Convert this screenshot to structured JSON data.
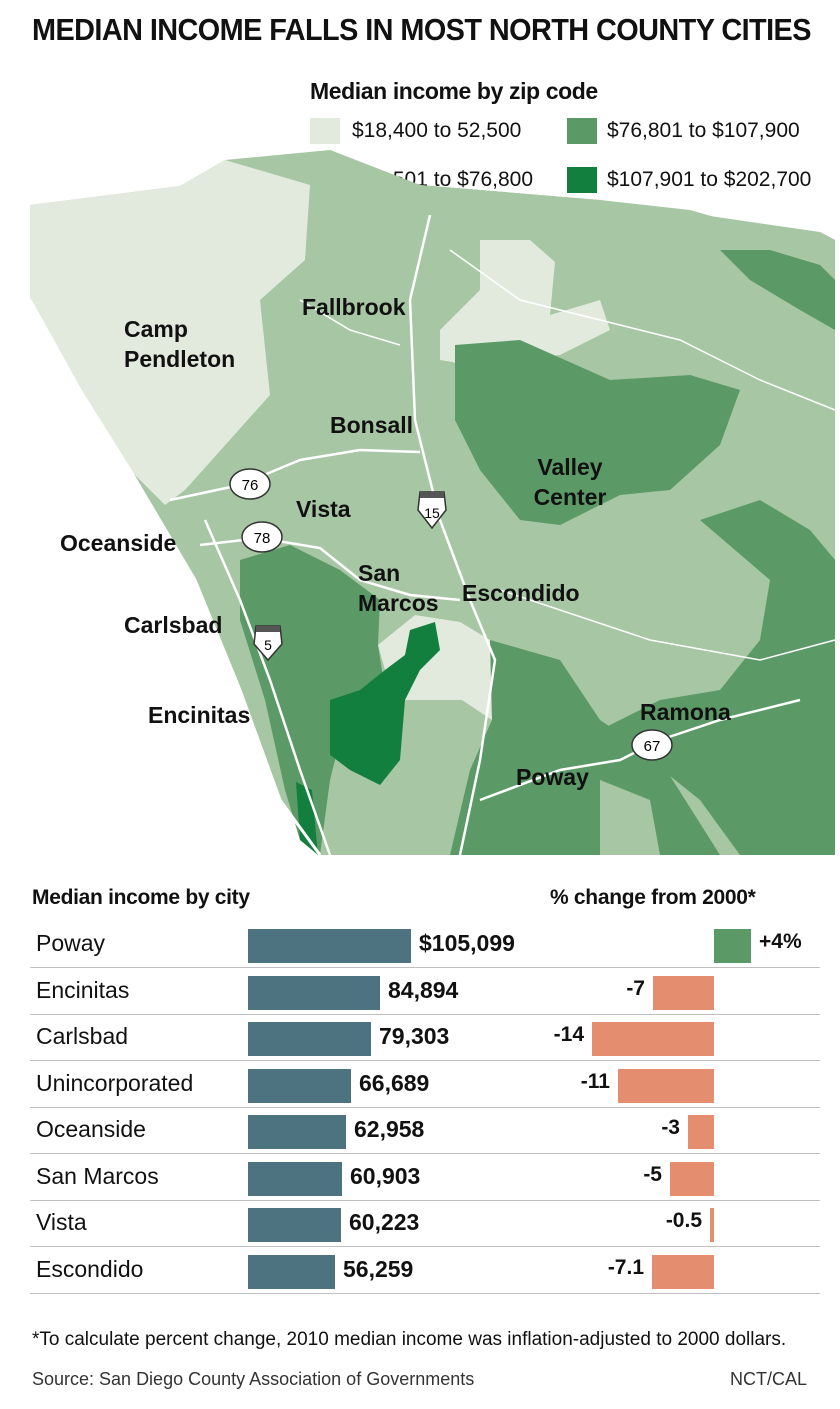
{
  "title": "MEDIAN INCOME FALLS IN MOST NORTH COUNTY CITIES",
  "legend": {
    "title": "Median income by zip code",
    "items": [
      {
        "label": "$18,400 to 52,500",
        "color": "#e1eadd"
      },
      {
        "label": "$76,801 to $107,900",
        "color": "#5b9a66"
      },
      {
        "label": "$52,501 to $76,800",
        "color": "#a7c6a4"
      },
      {
        "label": "$107,901 to $202,700",
        "color": "#137f3e"
      }
    ]
  },
  "map": {
    "places": [
      "Camp Pendleton",
      "Fallbrook",
      "Bonsall",
      "Valley Center",
      "Vista",
      "Oceanside",
      "San Marcos",
      "Escondido",
      "Carlsbad",
      "Encinitas",
      "Ramona",
      "Poway"
    ],
    "highways": [
      "76",
      "78",
      "15",
      "5",
      "67"
    ]
  },
  "chart_data": {
    "type": "bar",
    "titles": [
      "Median income by city",
      "% change from 2000*"
    ],
    "categories": [
      "Poway",
      "Encinitas",
      "Carlsbad",
      "Unincorporated",
      "Oceanside",
      "San Marcos",
      "Vista",
      "Escondido"
    ],
    "series": [
      {
        "name": "Median income by city",
        "values": [
          105099,
          84894,
          79303,
          66689,
          62958,
          60903,
          60223,
          56259
        ],
        "labels": [
          "$105,099",
          "84,894",
          "79,303",
          "66,689",
          "62,958",
          "60,903",
          "60,223",
          "56,259"
        ]
      },
      {
        "name": "% change from 2000*",
        "values": [
          4,
          -7,
          -14,
          -11,
          -3,
          -5,
          -0.5,
          -7.1
        ],
        "labels": [
          "+4%",
          "-7",
          "-14",
          "-11",
          "-3",
          "-5",
          "-0.5",
          "-7.1"
        ]
      }
    ],
    "colors": {
      "income": "#4d7381",
      "positive": "#5b9a66",
      "negative": "#e58d6f"
    }
  },
  "footnote": "*To calculate percent change, 2010 median income was inflation-adjusted to 2000 dollars.",
  "source": "Source: San Diego County Association of Governments",
  "credit": "NCT/CAL"
}
